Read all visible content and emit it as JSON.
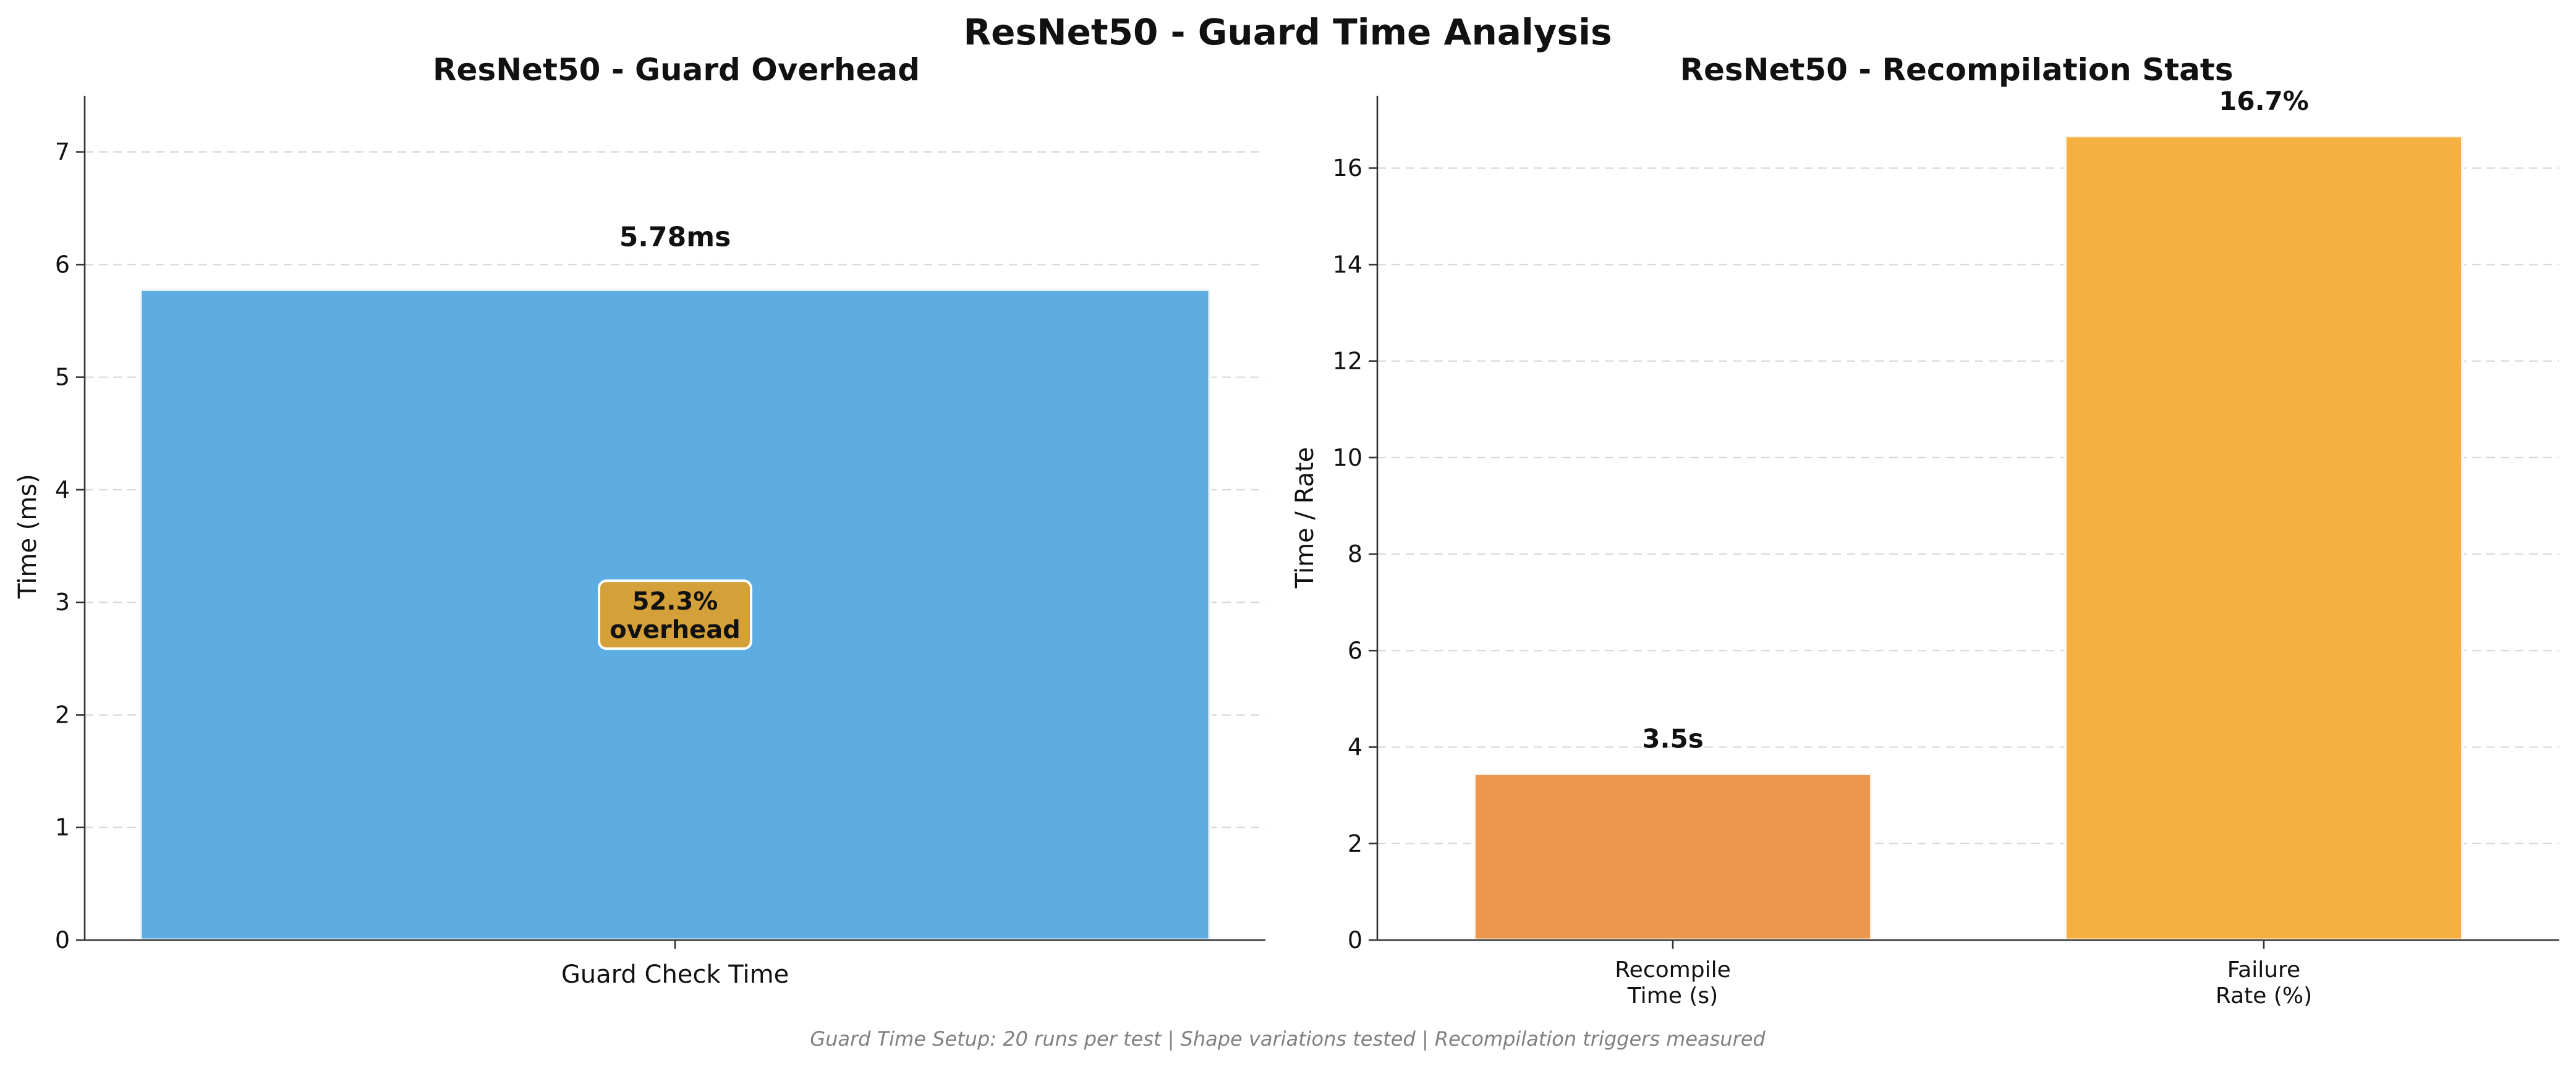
{
  "title": "ResNet50 - Guard Time Analysis",
  "footnote": "Guard Time Setup: 20 runs per test | Shape variations tested | Recompilation triggers measured",
  "colors": {
    "guard_bar": "#5dade2",
    "recompile_bar": "#eb984e",
    "failure_bar": "#f5b041",
    "annotation_box": "#d4a03a"
  },
  "chart_data": [
    {
      "type": "bar",
      "title": "ResNet50 - Guard Overhead",
      "xlabel": "",
      "ylabel": "Time (ms)",
      "ylim": [
        0,
        7.5
      ],
      "yticks": [
        0,
        1,
        2,
        3,
        4,
        5,
        6,
        7
      ],
      "grid": "y-dashed",
      "categories": [
        "Guard Check Time"
      ],
      "values": [
        5.78
      ],
      "data_labels": [
        "5.78ms"
      ],
      "annotation": {
        "line1": "52.3%",
        "line2": "overhead"
      }
    },
    {
      "type": "bar",
      "title": "ResNet50 - Recompilation Stats",
      "xlabel": "",
      "ylabel": "Time / Rate",
      "ylim": [
        0,
        17.5
      ],
      "yticks": [
        0,
        2,
        4,
        6,
        8,
        10,
        12,
        14,
        16
      ],
      "grid": "y-dashed",
      "categories": [
        [
          "Recompile",
          "Time (s)"
        ],
        [
          "Failure",
          "Rate (%)"
        ]
      ],
      "values": [
        3.45,
        16.67
      ],
      "data_labels": [
        "3.5s",
        "16.7%"
      ]
    }
  ]
}
